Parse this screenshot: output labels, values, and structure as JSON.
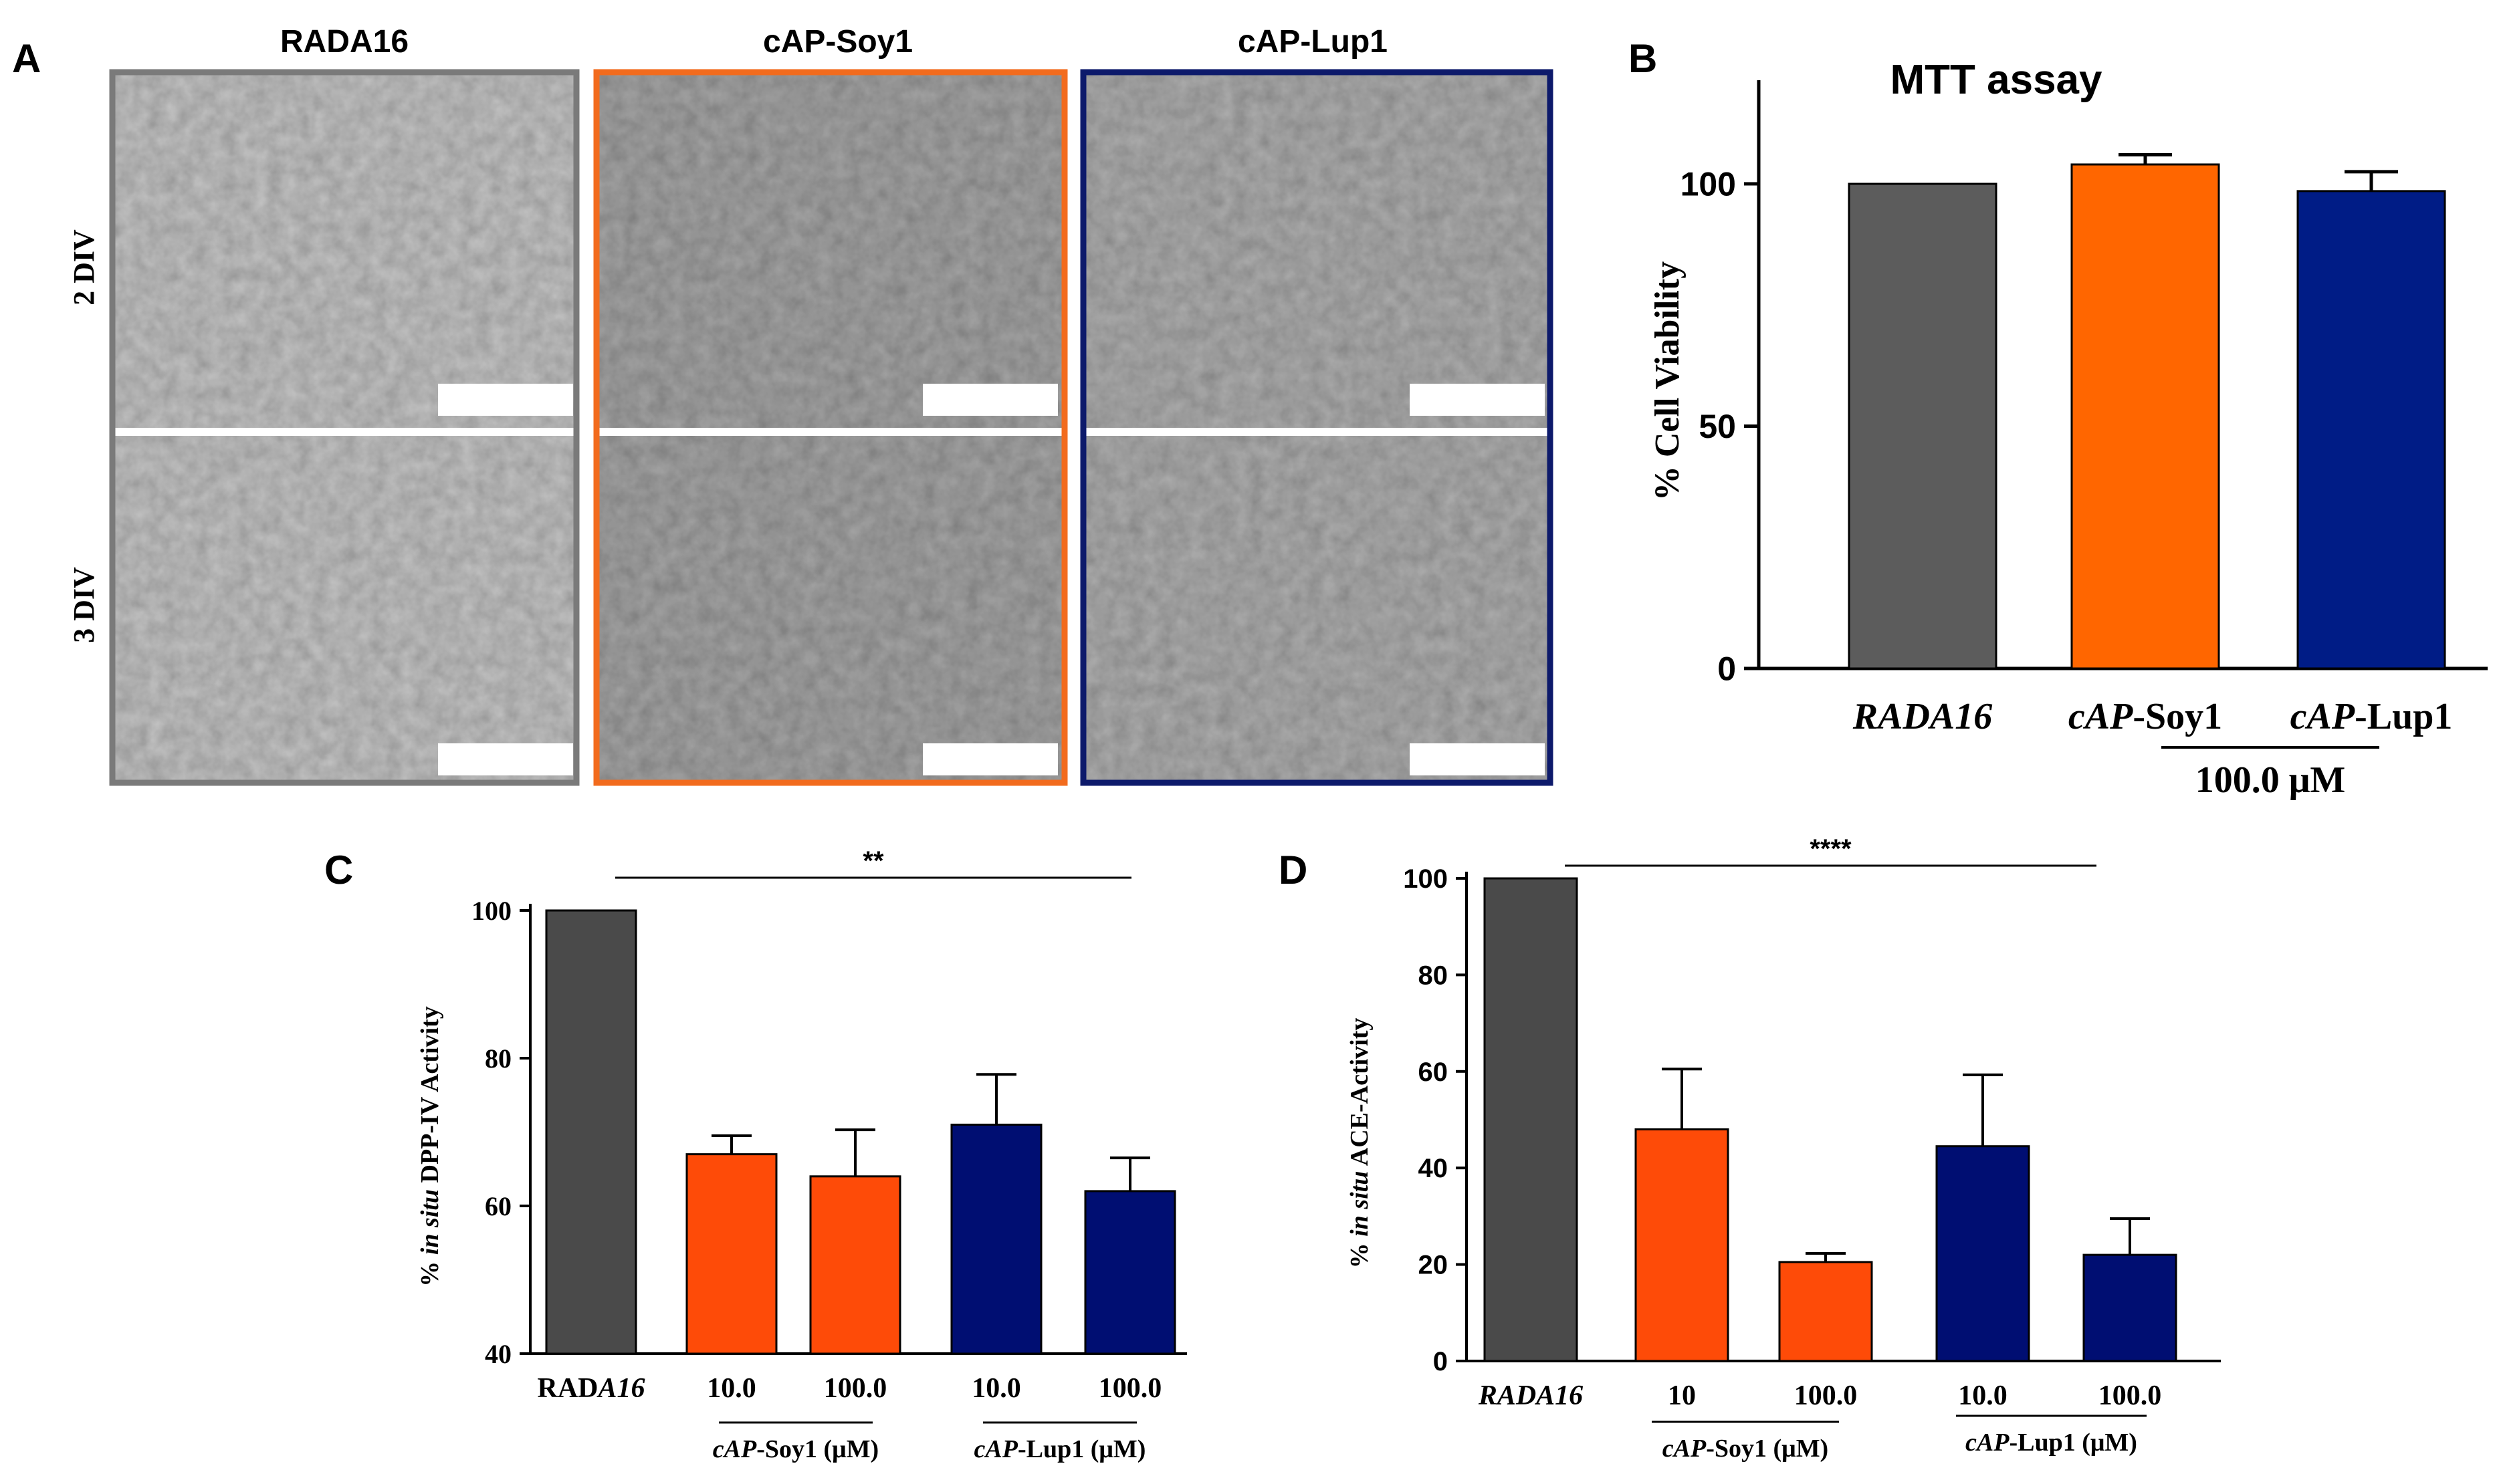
{
  "panel_a": {
    "letter": "A",
    "columns": [
      {
        "label": "RADA16",
        "border_color": "#7a7a7a",
        "tone": "#c9c9c9"
      },
      {
        "label": "cAP-Soy1",
        "border_color": "#f26b1d",
        "tone": "#a9a9a9"
      },
      {
        "label": "cAP-Lup1",
        "border_color": "#0d1a6b",
        "tone": "#b3b3b3"
      }
    ],
    "rows": [
      "2 DIV",
      "3 DIV"
    ]
  },
  "chart_data": [
    {
      "panel": "B",
      "type": "bar",
      "title": "MTT assay",
      "ylabel": "% Cell Viability",
      "categories": [
        {
          "italic": "RADA16",
          "normal": ""
        },
        {
          "italic": "cAP",
          "normal": "-Soy1"
        },
        {
          "italic": "cAP",
          "normal": "-Lup1"
        }
      ],
      "values": [
        100,
        104,
        98.5
      ],
      "errors": [
        0,
        2,
        4
      ],
      "colors": [
        "#5c5c5c",
        "#ff6600",
        "#001c86"
      ],
      "ylim": [
        0,
        120
      ],
      "yticks": [
        "0",
        "50",
        "100"
      ],
      "ytick_values": [
        0,
        50,
        100
      ],
      "group_label": "100.0 μM"
    },
    {
      "panel": "C",
      "type": "bar",
      "title": "",
      "ylabel_parts": {
        "prefix": "% ",
        "italic": "in situ",
        "suffix": " DPP-IV Activity"
      },
      "categories": [
        "RADA16",
        "10.0",
        "100.0",
        "10.0",
        "100.0"
      ],
      "values": [
        100,
        67,
        64,
        71,
        62
      ],
      "errors": [
        0,
        2.5,
        6.3,
        6.8,
        4.5
      ],
      "colors": [
        "#4a4a4a",
        "#fe4b08",
        "#fe4b08",
        "#000e72",
        "#000e72"
      ],
      "ylim": [
        40,
        100
      ],
      "yticks": [
        "40",
        "60",
        "80",
        "100"
      ],
      "ytick_values": [
        40,
        60,
        80,
        100
      ],
      "significance": "**",
      "groups": [
        {
          "italic": "cAP",
          "normal": "-Soy1 (μM)"
        },
        {
          "italic": "cAP",
          "normal": "-Lup1 (μM)"
        }
      ]
    },
    {
      "panel": "D",
      "type": "bar",
      "title": "",
      "ylabel_parts": {
        "prefix": "% ",
        "italic": "in situ",
        "suffix": " ACE-Activity"
      },
      "categories": [
        "RADA16",
        "10",
        "100.0",
        "10.0",
        "100.0"
      ],
      "values": [
        100,
        48,
        20.5,
        44.5,
        22
      ],
      "errors": [
        0,
        12.5,
        1.8,
        14.8,
        7.5
      ],
      "colors": [
        "#4a4a4a",
        "#fe4b08",
        "#fe4b08",
        "#000e72",
        "#000e72"
      ],
      "ylim": [
        0,
        100
      ],
      "yticks": [
        "0",
        "20",
        "40",
        "60",
        "80",
        "100"
      ],
      "ytick_values": [
        0,
        20,
        40,
        60,
        80,
        100
      ],
      "significance": "****",
      "groups": [
        {
          "italic": "cAP",
          "normal": "-Soy1 (μM)"
        },
        {
          "italic": "cAP",
          "normal": "-Lup1 (μM)"
        }
      ]
    }
  ]
}
